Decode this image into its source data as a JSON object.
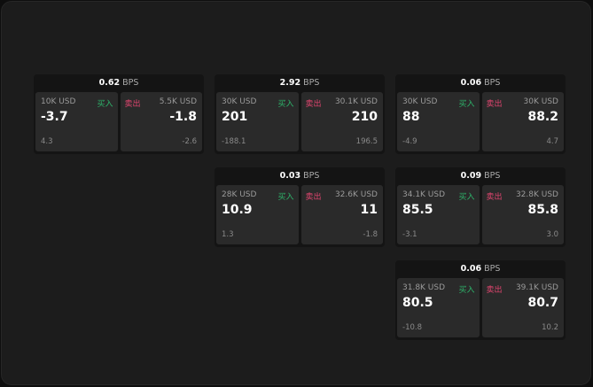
{
  "labels": {
    "buy": "买入",
    "sell": "卖出",
    "bps_unit": "BPS"
  },
  "colors": {
    "buy": "#2db36a",
    "sell": "#e0456f"
  },
  "cards": [
    {
      "bps": "0.62",
      "buy": {
        "size": "10K USD",
        "price": "-3.7",
        "change": "4.3"
      },
      "sell": {
        "size": "5.5K USD",
        "price": "-1.8",
        "change": "-2.6"
      }
    },
    {
      "bps": "2.92",
      "buy": {
        "size": "30K USD",
        "price": "201",
        "change": "-188.1"
      },
      "sell": {
        "size": "30.1K USD",
        "price": "210",
        "change": "196.5"
      }
    },
    {
      "bps": "0.06",
      "buy": {
        "size": "30K USD",
        "price": "88",
        "change": "-4.9"
      },
      "sell": {
        "size": "30K USD",
        "price": "88.2",
        "change": "4.7"
      }
    },
    {
      "bps": "0.03",
      "buy": {
        "size": "28K USD",
        "price": "10.9",
        "change": "1.3"
      },
      "sell": {
        "size": "32.6K USD",
        "price": "11",
        "change": "-1.8"
      }
    },
    {
      "bps": "0.09",
      "buy": {
        "size": "34.1K USD",
        "price": "85.5",
        "change": "-3.1"
      },
      "sell": {
        "size": "32.8K USD",
        "price": "85.8",
        "change": "3.0"
      }
    },
    {
      "bps": "0.06",
      "buy": {
        "size": "31.8K USD",
        "price": "80.5",
        "change": "-10.8"
      },
      "sell": {
        "size": "39.1K USD",
        "price": "80.7",
        "change": "10.2"
      }
    }
  ]
}
